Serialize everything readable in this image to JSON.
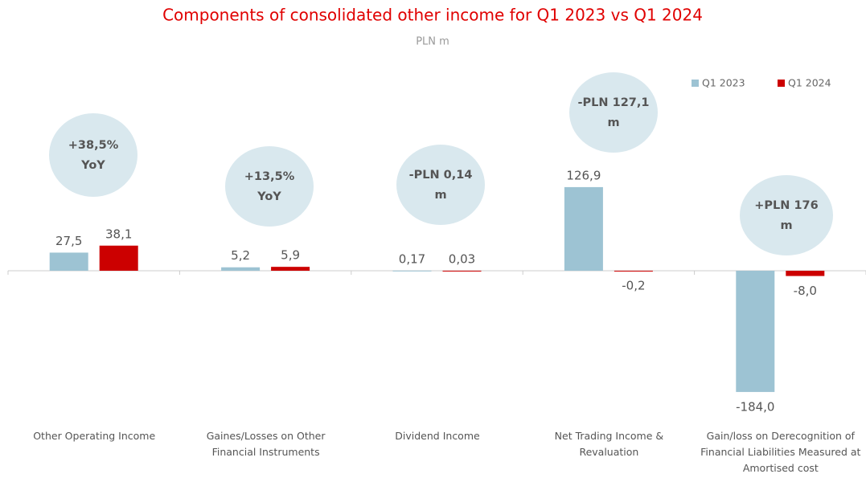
{
  "chart_data": {
    "type": "bar",
    "title": "Components of consolidated other income for Q1 2023 vs Q1 2024",
    "subtitle": "PLN m",
    "categories": [
      "Other Operating Income",
      "Gaines/Losses on Other Financial Instruments",
      "Dividend Income",
      "Net Trading Income & Revaluation",
      "Gain/loss on Derecognition of Financial Liabilities Measured at Amortised cost"
    ],
    "series": [
      {
        "name": "Q1 2023",
        "color": "#9dc3d3",
        "values": [
          27.5,
          5.2,
          0.17,
          126.9,
          -184.0
        ],
        "value_labels": [
          "27,5",
          "5,2",
          "0,17",
          "126,9",
          "-184,0"
        ]
      },
      {
        "name": "Q1 2024",
        "color": "#cc0000",
        "values": [
          38.1,
          5.9,
          0.03,
          -0.2,
          -8.0
        ],
        "value_labels": [
          "38,1",
          "5,9",
          "0,03",
          "-0,2",
          "-8,0"
        ]
      }
    ],
    "annotations": [
      [
        "+38,5%",
        "YoY"
      ],
      [
        "+13,5%",
        "YoY"
      ],
      [
        "-PLN 0,14",
        "m"
      ],
      [
        "-PLN 127,1",
        "m"
      ],
      [
        "+PLN 176",
        "m"
      ]
    ],
    "legend": "top-right"
  }
}
